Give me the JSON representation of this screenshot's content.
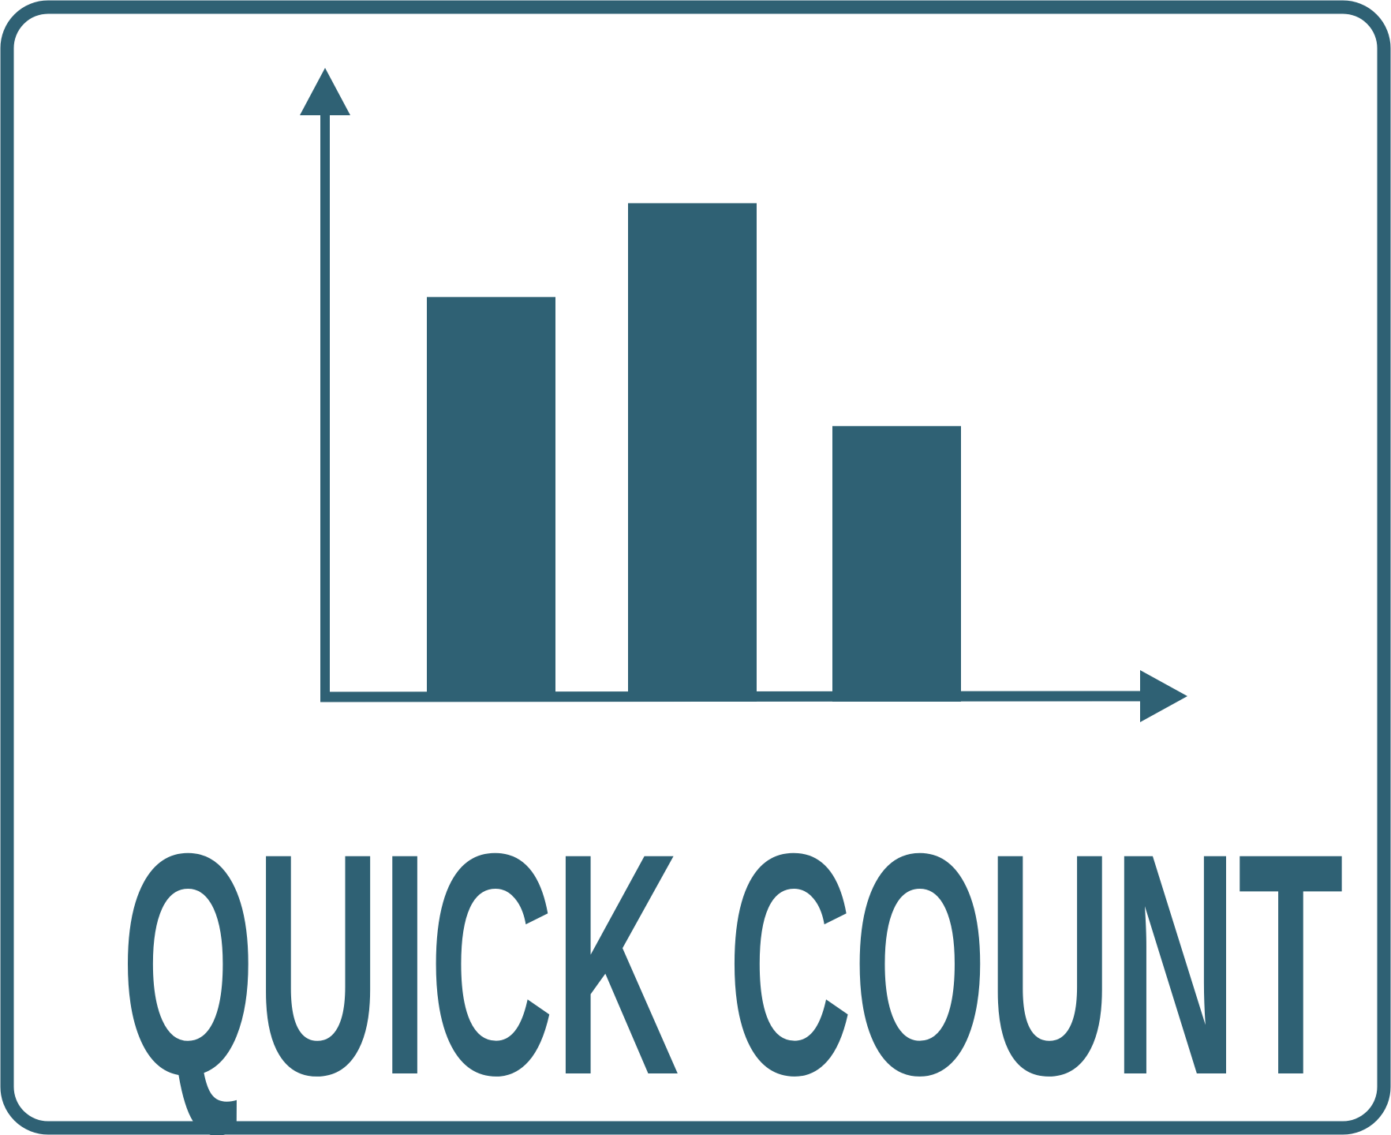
{
  "chart_data": {
    "type": "bar",
    "title": "QUICK COUNT",
    "categories": [
      null,
      null,
      null
    ],
    "values": [
      69,
      85,
      47
    ],
    "color": "#2f6174",
    "ylim": [
      0,
      100
    ]
  }
}
